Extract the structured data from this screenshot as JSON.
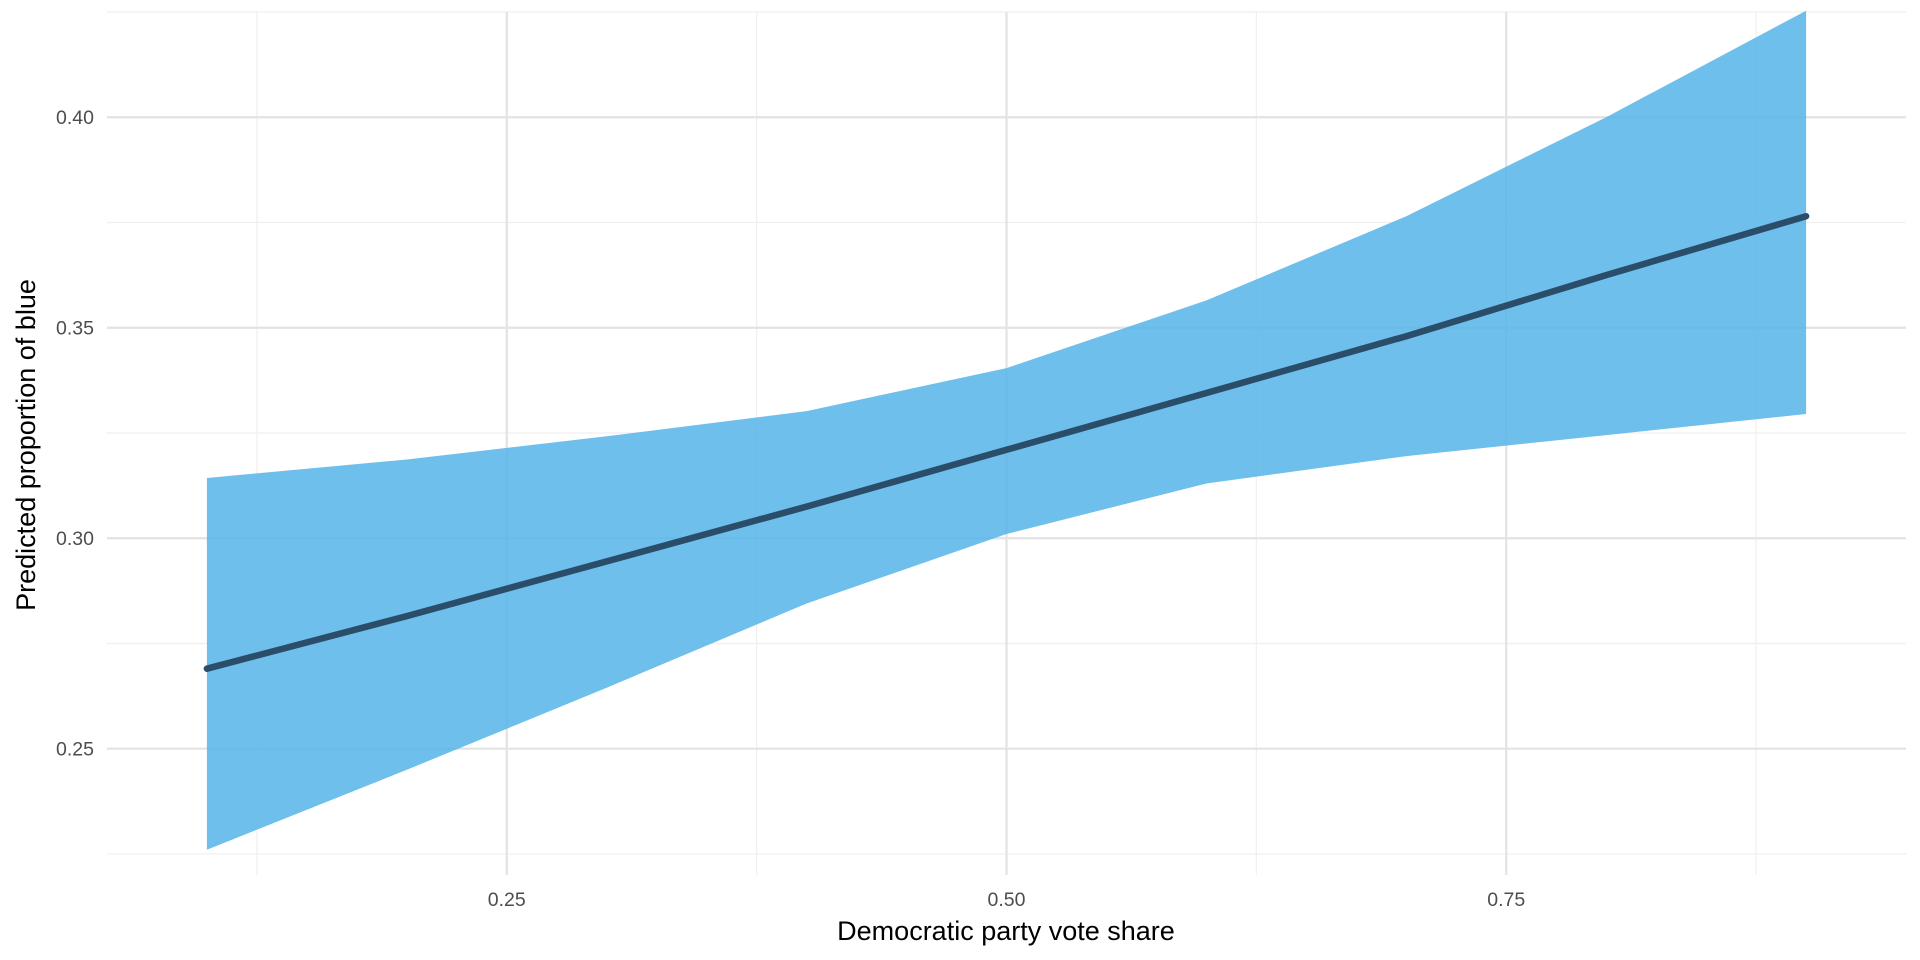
{
  "chart_data": {
    "type": "line",
    "xlabel": "Democratic party vote share",
    "ylabel": "Predicted proportion of blue",
    "xlim": [
      0.05,
      0.95
    ],
    "ylim": [
      0.22,
      0.425
    ],
    "x_ticks": [
      0.25,
      0.5,
      0.75
    ],
    "x_tick_labels": [
      "0.25",
      "0.50",
      "0.75"
    ],
    "y_ticks": [
      0.25,
      0.3,
      0.35,
      0.4
    ],
    "y_tick_labels": [
      "0.25",
      "0.30",
      "0.35",
      "0.40"
    ],
    "grid": true,
    "series": [
      {
        "x": [
          0.1,
          0.2,
          0.3,
          0.4,
          0.5,
          0.6,
          0.7,
          0.8,
          0.9
        ],
        "values": [
          0.269,
          0.2815,
          0.2945,
          0.3075,
          0.321,
          0.3345,
          0.348,
          0.3625,
          0.3765
        ],
        "lower": [
          0.226,
          0.245,
          0.2645,
          0.2845,
          0.301,
          0.313,
          0.3195,
          0.3245,
          0.3295
        ],
        "upper": [
          0.3143,
          0.3187,
          0.3242,
          0.3302,
          0.3404,
          0.3565,
          0.3765,
          0.4,
          0.4253
        ]
      }
    ],
    "colors": {
      "ribbon": "#56b4e9",
      "line": "#2a4d69"
    }
  }
}
